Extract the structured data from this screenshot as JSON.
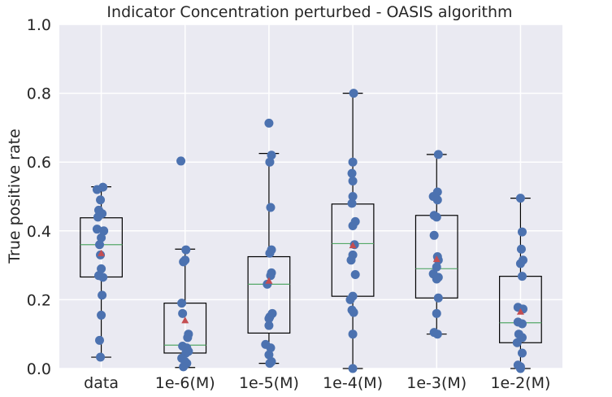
{
  "chart_data": {
    "type": "box",
    "title": "Indicator Concentration perturbed - OASIS algorithm",
    "xlabel": "",
    "ylabel": "True positive rate",
    "ylim": [
      0.0,
      1.0
    ],
    "yticks": [
      "0.0",
      "0.2",
      "0.4",
      "0.6",
      "0.8",
      "1.0"
    ],
    "grid": true,
    "colors": {
      "background": "#EAEAF2",
      "grid": "#FFFFFF",
      "points": "#4C72B0",
      "median": "#55A868",
      "mean": "#C44E52",
      "box": "#000000"
    },
    "categories": [
      "data",
      "1e-6(M)",
      "1e-5(M)",
      "1e-4(M)",
      "1e-3(M)",
      "1e-2(M)"
    ],
    "boxes": [
      {
        "whisker_low": 0.033,
        "q1": 0.266,
        "median": 0.36,
        "q3": 0.438,
        "whisker_high": 0.528,
        "mean": 0.335
      },
      {
        "whisker_low": 0.003,
        "q1": 0.045,
        "median": 0.068,
        "q3": 0.19,
        "whisker_high": 0.347,
        "mean": 0.14
      },
      {
        "whisker_low": 0.015,
        "q1": 0.103,
        "median": 0.245,
        "q3": 0.325,
        "whisker_high": 0.625,
        "mean": 0.255
      },
      {
        "whisker_low": 0.0,
        "q1": 0.21,
        "median": 0.363,
        "q3": 0.478,
        "whisker_high": 0.8,
        "mean": 0.358
      },
      {
        "whisker_low": 0.1,
        "q1": 0.205,
        "median": 0.29,
        "q3": 0.445,
        "whisker_high": 0.622,
        "mean": 0.318
      },
      {
        "whisker_low": 0.0,
        "q1": 0.075,
        "median": 0.133,
        "q3": 0.268,
        "whisker_high": 0.495,
        "mean": 0.165
      }
    ],
    "points": [
      [
        0.527,
        0.52,
        0.49,
        0.46,
        0.45,
        0.44,
        0.405,
        0.4,
        0.38,
        0.36,
        0.33,
        0.29,
        0.27,
        0.265,
        0.213,
        0.155,
        0.082,
        0.033
      ],
      [
        0.603,
        0.345,
        0.315,
        0.31,
        0.19,
        0.16,
        0.1,
        0.09,
        0.065,
        0.06,
        0.05,
        0.045,
        0.03,
        0.02,
        0.015,
        0.005
      ],
      [
        0.713,
        0.62,
        0.6,
        0.468,
        0.345,
        0.335,
        0.278,
        0.27,
        0.245,
        0.16,
        0.15,
        0.145,
        0.125,
        0.07,
        0.06,
        0.04,
        0.02,
        0.015
      ],
      [
        0.8,
        0.6,
        0.567,
        0.545,
        0.5,
        0.48,
        0.427,
        0.415,
        0.36,
        0.33,
        0.315,
        0.273,
        0.21,
        0.2,
        0.17,
        0.163,
        0.1,
        0.0
      ],
      [
        0.622,
        0.513,
        0.5,
        0.49,
        0.445,
        0.44,
        0.387,
        0.325,
        0.315,
        0.295,
        0.275,
        0.265,
        0.26,
        0.205,
        0.16,
        0.105,
        0.1
      ],
      [
        0.495,
        0.397,
        0.347,
        0.315,
        0.305,
        0.268,
        0.178,
        0.173,
        0.135,
        0.13,
        0.1,
        0.09,
        0.075,
        0.045,
        0.01,
        0.005,
        0.0
      ]
    ],
    "jitter": [
      [
        0.02,
        -0.05,
        -0.01,
        -0.03,
        0.01,
        -0.04,
        -0.05,
        0.03,
        0.0,
        -0.02,
        -0.01,
        0.0,
        -0.03,
        0.02,
        0.01,
        0.0,
        -0.02,
        -0.01
      ],
      [
        -0.05,
        0.01,
        0.0,
        -0.02,
        -0.04,
        -0.03,
        0.04,
        0.03,
        -0.03,
        0.02,
        0.04,
        0.01,
        -0.04,
        0.0,
        0.02,
        -0.02
      ],
      [
        0.0,
        0.03,
        0.01,
        0.02,
        0.03,
        0.01,
        0.03,
        0.02,
        -0.02,
        0.04,
        0.01,
        0.0,
        0.0,
        -0.04,
        0.02,
        0.0,
        0.03,
        0.01
      ],
      [
        0.01,
        0.0,
        -0.01,
        0.0,
        0.0,
        -0.01,
        0.03,
        0.0,
        0.02,
        0.0,
        -0.02,
        0.03,
        0.0,
        -0.03,
        -0.01,
        0.01,
        0.0,
        0.0
      ],
      [
        0.02,
        0.01,
        -0.04,
        0.01,
        -0.03,
        0.0,
        -0.03,
        0.01,
        0.02,
        0.0,
        -0.04,
        0.02,
        0.0,
        0.02,
        0.0,
        -0.03,
        0.01
      ],
      [
        0.0,
        0.02,
        0.01,
        0.03,
        0.0,
        0.02,
        -0.03,
        0.03,
        -0.03,
        0.02,
        -0.02,
        0.02,
        -0.04,
        0.02,
        -0.03,
        0.0,
        0.0
      ]
    ]
  }
}
